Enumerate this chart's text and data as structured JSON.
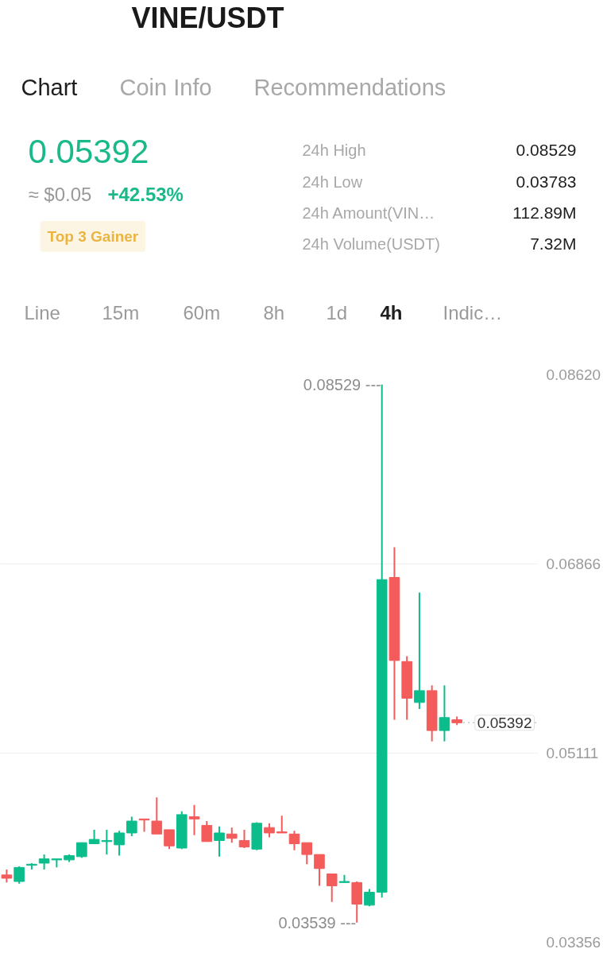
{
  "chart_data": [
    {
      "type": "other",
      "title": "VINE/USDT",
      "annotations": [
        "Chart",
        "Coin Info",
        "Recommendations",
        "0.05392",
        "≈ $0.05",
        "+42.53%",
        "Top 3 Gainer",
        "24h High",
        "0.08529",
        "24h Low",
        "0.03783",
        "24h Amount(VIN…",
        "112.89M",
        "24h Volume(USDT)",
        "7.32M",
        "Line",
        "15m",
        "60m",
        "8h",
        "1d",
        "4h",
        "Indic…"
      ]
    },
    {
      "type": "candlestick",
      "categories": [
        null,
        null,
        null,
        null,
        null,
        null,
        null,
        null,
        null,
        null,
        null,
        null,
        null,
        null,
        null,
        null,
        null,
        null,
        null,
        null,
        null,
        null,
        null,
        null,
        null,
        null,
        null,
        null,
        null,
        null,
        null,
        null,
        null,
        null,
        null,
        null,
        null,
        null,
        null,
        null,
        null,
        null,
        null
      ],
      "ohlc": [
        [
          0.0398,
          0.0403,
          0.0391,
          0.0395
        ],
        [
          0.0392,
          0.0406,
          0.039,
          0.0405
        ],
        [
          0.0407,
          0.0409,
          0.0403,
          0.0408
        ],
        [
          0.0409,
          0.0417,
          0.0403,
          0.0413
        ],
        [
          0.0412,
          0.0413,
          0.0405,
          0.0413
        ],
        [
          0.0412,
          0.0417,
          0.041,
          0.0416
        ],
        [
          0.0415,
          0.0428,
          0.0414,
          0.0428
        ],
        [
          0.0427,
          0.044,
          0.0427,
          0.0431
        ],
        [
          0.0429,
          0.044,
          0.0417,
          0.043
        ],
        [
          0.0426,
          0.0439,
          0.0416,
          0.0437
        ],
        [
          0.0437,
          0.0452,
          0.0434,
          0.0448
        ],
        [
          0.045,
          0.045,
          0.0438,
          0.0449
        ],
        [
          0.0448,
          0.047,
          0.0436,
          0.0436
        ],
        [
          0.044,
          0.044,
          0.0422,
          0.0425
        ],
        [
          0.0423,
          0.0457,
          0.0422,
          0.0454
        ],
        [
          0.0452,
          0.0463,
          0.0435,
          0.045
        ],
        [
          0.0444,
          0.0448,
          0.0429,
          0.0429
        ],
        [
          0.043,
          0.0443,
          0.0415,
          0.0437
        ],
        [
          0.0436,
          0.0442,
          0.0428,
          0.0432
        ],
        [
          0.043,
          0.044,
          0.0423,
          0.0424
        ],
        [
          0.0422,
          0.0447,
          0.0421,
          0.0446
        ],
        [
          0.0442,
          0.0446,
          0.0433,
          0.0437
        ],
        [
          0.0438,
          0.0453,
          0.0437,
          0.0437
        ],
        [
          0.0436,
          0.0439,
          0.0421,
          0.0427
        ],
        [
          0.0428,
          0.0428,
          0.0408,
          0.0417
        ],
        [
          0.0417,
          0.0417,
          0.0388,
          0.0404
        ],
        [
          0.0399,
          0.0399,
          0.0373,
          0.0388
        ],
        [
          0.0391,
          0.0398,
          0.0391,
          0.0392
        ],
        [
          0.0391,
          0.0392,
          0.03539,
          0.0371
        ],
        [
          0.037,
          0.0385,
          0.0369,
          0.0382
        ],
        [
          0.0382,
          0.08529,
          0.0377,
          0.0672
        ],
        [
          0.0674,
          0.0702,
          0.0542,
          0.0597
        ],
        [
          0.0596,
          0.0601,
          0.0542,
          0.0562
        ],
        [
          0.0558,
          0.066,
          0.0552,
          0.0569
        ],
        [
          0.0569,
          0.0574,
          0.0522,
          0.0532
        ],
        [
          0.0532,
          0.0574,
          0.0522,
          0.0544
        ],
        [
          0.0542,
          0.0545,
          0.0537,
          0.05392
        ],
        null,
        null,
        null,
        null,
        null,
        null
      ],
      "colors": [
        "#f45b5b",
        "#0cbd8c",
        "#0cbd8c",
        "#0cbd8c",
        "#0cbd8c",
        "#0cbd8c",
        "#0cbd8c",
        "#0cbd8c",
        "#0cbd8c",
        "#0cbd8c",
        "#0cbd8c",
        "#f45b5b",
        "#f45b5b",
        "#f45b5b",
        "#0cbd8c",
        "#f45b5b",
        "#f45b5b",
        "#0cbd8c",
        "#f45b5b",
        "#f45b5b",
        "#0cbd8c",
        "#f45b5b",
        "#f45b5b",
        "#f45b5b",
        "#f45b5b",
        "#f45b5b",
        "#f45b5b",
        "#0cbd8c",
        "#f45b5b",
        "#0cbd8c",
        "#0cbd8c",
        "#f45b5b",
        "#f45b5b",
        "#0cbd8c",
        "#f45b5b",
        "#0cbd8c",
        "#f45b5b",
        null,
        null,
        null,
        null,
        null,
        null
      ],
      "ylim": [
        0.03356,
        0.0862
      ],
      "yticks": [
        {
          "value": 0.0862,
          "label": "0.08620"
        },
        0.06866,
        0.05111,
        0.03356
      ],
      "grid": "y",
      "tick_labels": "y",
      "ref_lines": [
        {
          "axis": "y",
          "value": 0.05392,
          "label": "0.05392",
          "line_style": "dotted",
          "color": "#c8c8c8"
        }
      ],
      "annotations": [
        "0.08529 ---",
        "0.03539 ---"
      ]
    }
  ]
}
